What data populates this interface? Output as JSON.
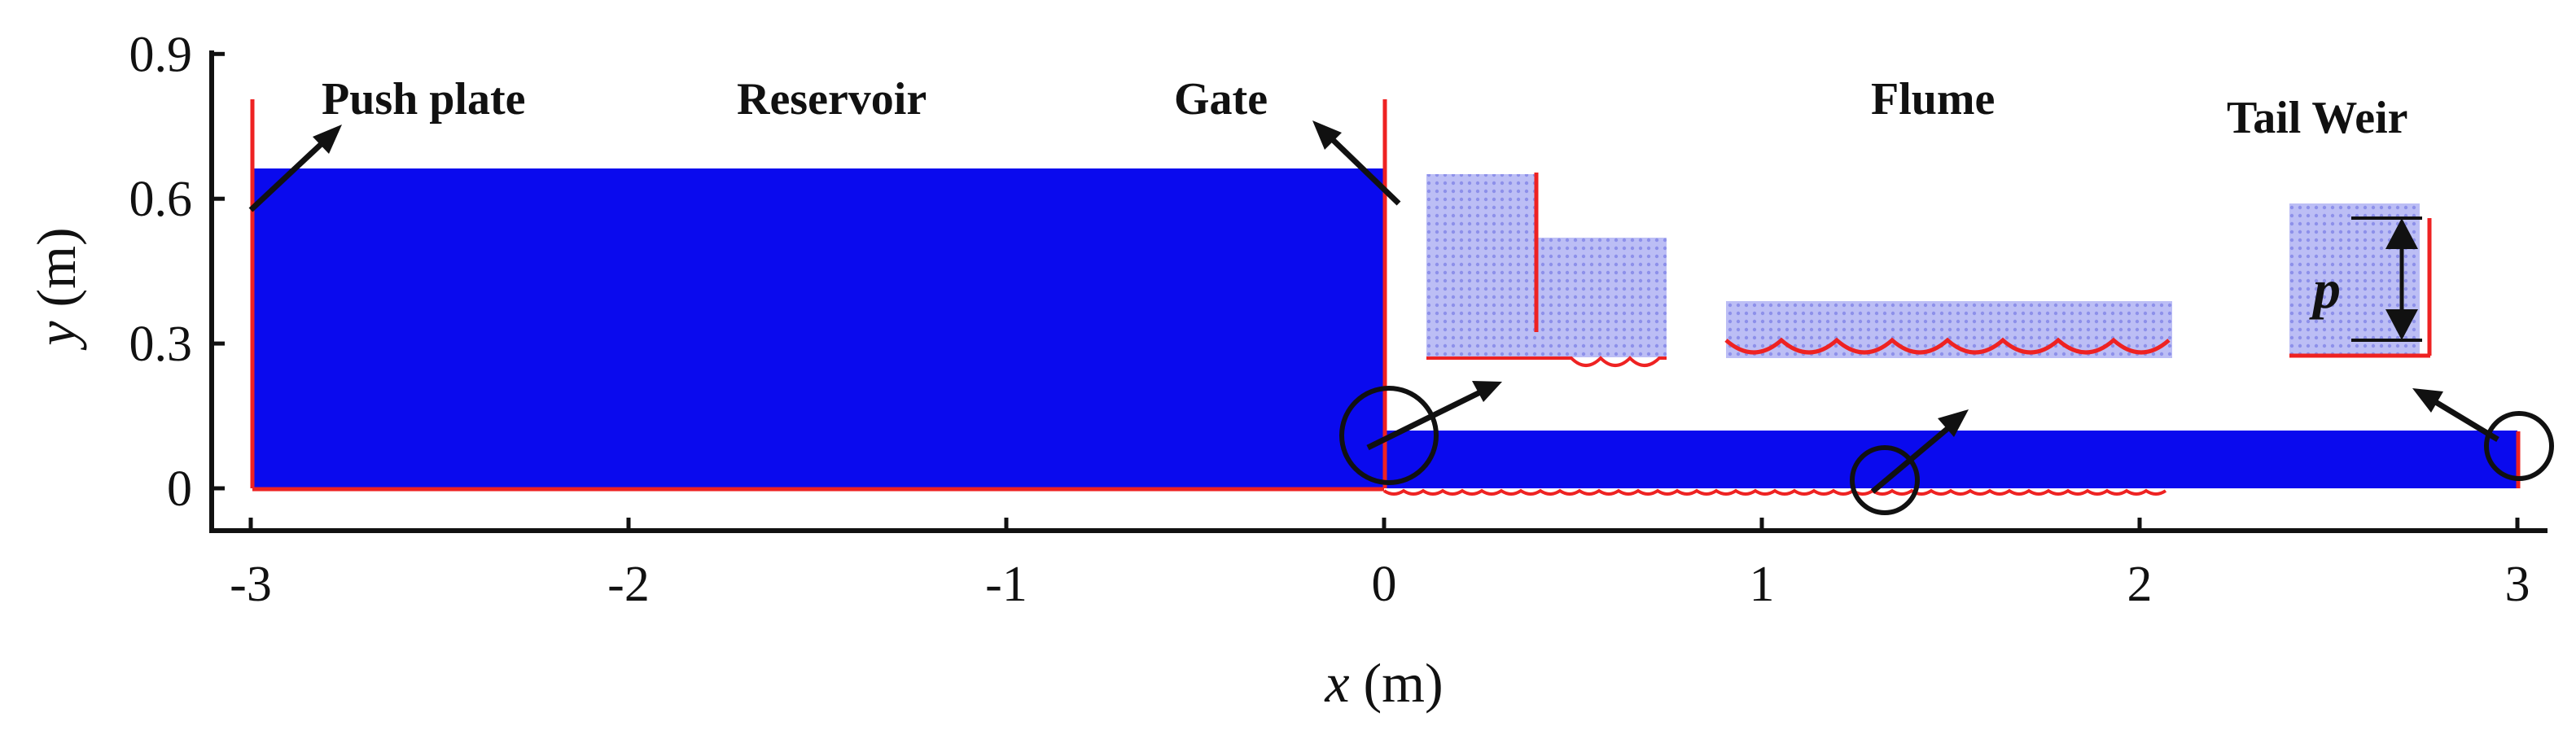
{
  "axes": {
    "xlabel_var": "x",
    "xlabel_unit": " (m)",
    "ylabel_var": "y",
    "ylabel_unit": " (m)",
    "xticks": [
      "-3",
      "-2",
      "-1",
      "0",
      "1",
      "2",
      "3"
    ],
    "yticks": [
      "0",
      "0.3",
      "0.6",
      "0.9"
    ],
    "xlim": [
      -3.05,
      3.05
    ],
    "ylim": [
      0,
      0.9
    ]
  },
  "annotations": {
    "push_plate": "Push plate",
    "reservoir": "Reservoir",
    "gate": "Gate",
    "flume": "Flume",
    "tail_weir": "Tail Weir",
    "p": "p"
  },
  "colors": {
    "water": "#0a0aee",
    "boundary": "#ee2222",
    "inset_water": "#b6b8f4",
    "axis": "#111111"
  },
  "geometry_data": {
    "reservoir_x": [
      -3.0,
      0.0
    ],
    "reservoir_depth_m": 0.66,
    "flume_x": [
      0.0,
      3.0
    ],
    "flume_depth_m": 0.12,
    "gate_x_m": 0.0,
    "push_plate_x_m": -3.0
  }
}
